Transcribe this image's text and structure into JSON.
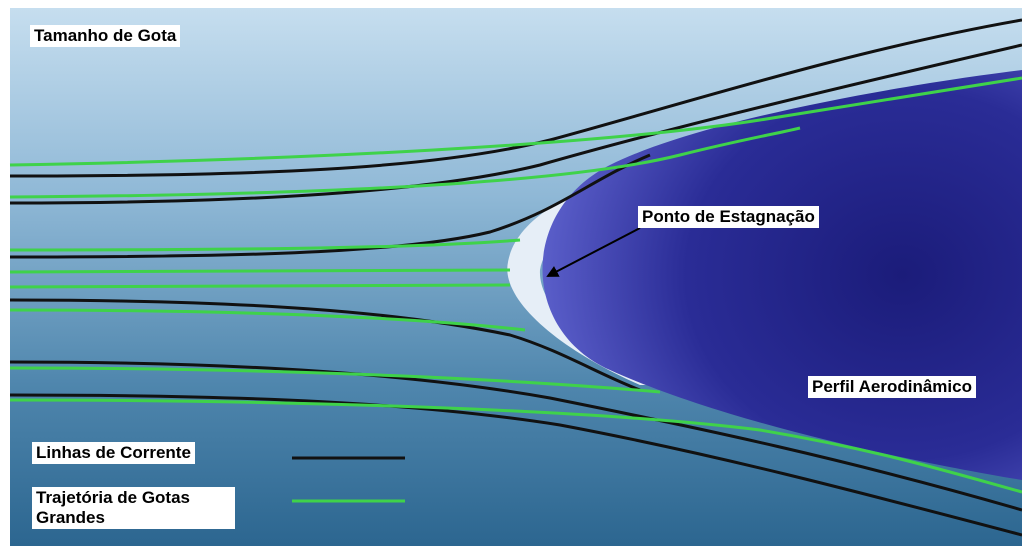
{
  "title": "Tamanho de Gota",
  "labels": {
    "stagnation_point": "Ponto de Estagnação",
    "airfoil": "Perfil Aerodinâmico"
  },
  "legend": {
    "streamlines": "Linhas de Corrente",
    "droplet_trajectories": "Trajetória de Gotas Grandes"
  },
  "colors": {
    "streamline": "#111111",
    "droplet_trajectory": "#3fd24a",
    "airfoil": "#2e2f9e",
    "impingement_zone": "#e6eef7",
    "background_top": "#c3dbef",
    "background_bottom": "#2f6a94"
  }
}
